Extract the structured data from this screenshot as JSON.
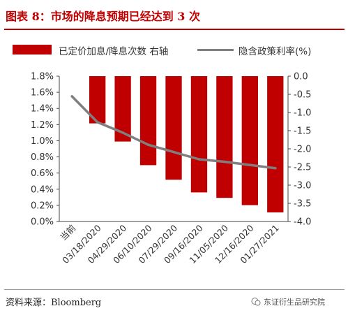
{
  "title": "图表 8：市场的降息预期已经达到 3 次",
  "legend": {
    "bar_label": "已定价加息/降息次数 右轴",
    "line_label": "隐含政策利率(%)"
  },
  "source": "资料来源：Bloomberg",
  "watermark": "东证衍生品研究院",
  "colors": {
    "bar": "#c00000",
    "line": "#7f7f7f",
    "title": "#c00000"
  },
  "chart_data": {
    "type": "bar+line",
    "categories": [
      "当前",
      "03/18/2020",
      "04/29/2020",
      "06/10/2020",
      "07/29/2020",
      "09/16/2020",
      "11/05/2020",
      "12/16/2020",
      "01/27/2021"
    ],
    "x_tick_labels": [
      "当前",
      "03/18/2020",
      "04/29/2020",
      "06/10/2020",
      "07/29/2020",
      "09/16/2020",
      "11/05/2020",
      "12/16/2020",
      "01/27/2021"
    ],
    "series": [
      {
        "name": "已定价加息/降息次数 右轴",
        "type": "bar",
        "axis": "right",
        "values": [
          null,
          -1.3,
          -1.8,
          -2.45,
          -2.85,
          -3.2,
          -3.35,
          -3.55,
          -3.75
        ]
      },
      {
        "name": "隐含政策利率(%)",
        "type": "line",
        "axis": "left",
        "values": [
          1.55,
          1.23,
          1.1,
          0.95,
          0.86,
          0.77,
          0.74,
          0.7,
          0.66
        ]
      }
    ],
    "left_axis": {
      "min": 0,
      "max": 1.8,
      "ticks": [
        "0.0%",
        "0.2%",
        "0.4%",
        "0.6%",
        "0.8%",
        "1.0%",
        "1.2%",
        "1.4%",
        "1.6%",
        "1.8%"
      ]
    },
    "right_axis": {
      "min": -4.0,
      "max": 0.0,
      "ticks": [
        "0.0",
        "-0.5",
        "-1.0",
        "-1.5",
        "-2.0",
        "-2.5",
        "-3.0",
        "-3.5",
        "-4.0"
      ]
    },
    "grid": false
  }
}
